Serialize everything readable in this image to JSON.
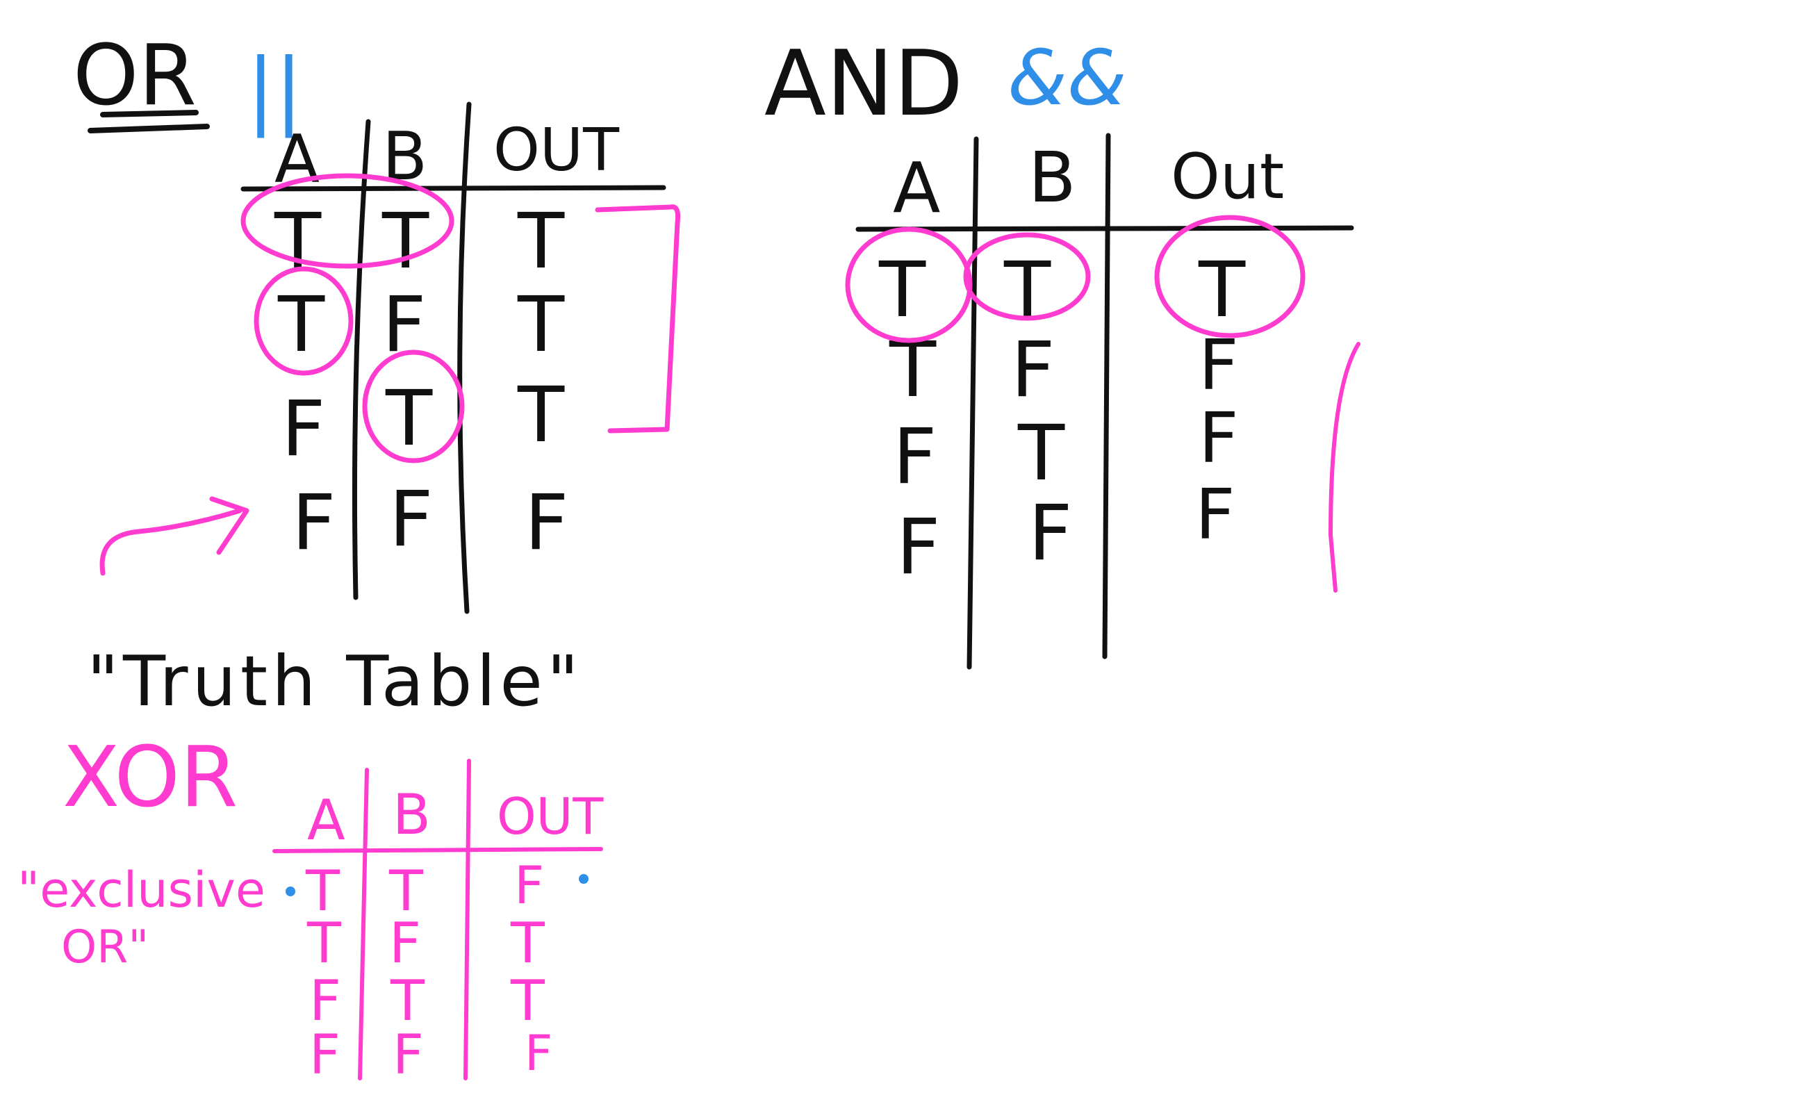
{
  "colors": {
    "ink": "#111111",
    "pink": "#ff3bd0",
    "blue": "#2f8fe8"
  },
  "or_section": {
    "title": "OR",
    "operator": "||",
    "headers": [
      "A",
      "B",
      "OUT"
    ],
    "rows": [
      [
        "T",
        "T",
        "T"
      ],
      [
        "T",
        "F",
        "T"
      ],
      [
        "F",
        "T",
        "T"
      ],
      [
        "F",
        "F",
        "F"
      ]
    ]
  },
  "and_section": {
    "title": "AND",
    "operator": "&&",
    "headers": [
      "A",
      "B",
      "Out"
    ],
    "rows": [
      [
        "T",
        "T",
        "T"
      ],
      [
        "T",
        "F",
        "F"
      ],
      [
        "F",
        "T",
        "F"
      ],
      [
        "F",
        "F",
        "F"
      ]
    ]
  },
  "truth_table_caption": "\"Truth Table\"",
  "xor_section": {
    "title": "XOR",
    "note_line1": "\"exclusive",
    "note_line2": "OR\"",
    "headers": [
      "A",
      "B",
      "OUT"
    ],
    "rows": [
      [
        "T",
        "T",
        "F"
      ],
      [
        "T",
        "F",
        "T"
      ],
      [
        "F",
        "T",
        "T"
      ],
      [
        "F",
        "F",
        "F"
      ]
    ]
  }
}
